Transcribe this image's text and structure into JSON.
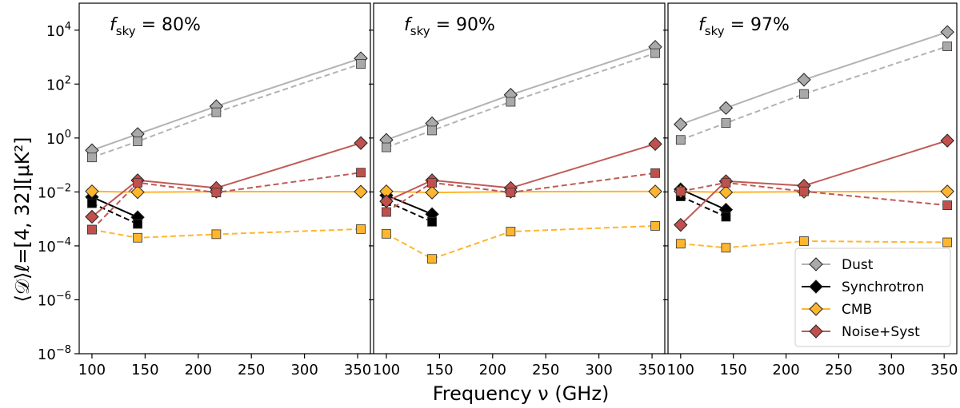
{
  "chart_data": {
    "type": "line",
    "xlabel": "Frequency ν (GHz)",
    "ylabel": "⟨𝒟⟩ℓ=[4, 32][μK²]",
    "x_ticks": [
      100,
      150,
      200,
      250,
      300,
      350
    ],
    "xlim": [
      88,
      362
    ],
    "yscale": "log",
    "ylim": [
      1e-08,
      100000.0
    ],
    "y_ticks": [
      {
        "exp": 4,
        "label": "10",
        "sup": "4"
      },
      {
        "exp": 2,
        "label": "10",
        "sup": "2"
      },
      {
        "exp": 0,
        "label": "10",
        "sup": "0"
      },
      {
        "exp": -2,
        "label": "10",
        "sup": "−2"
      },
      {
        "exp": -4,
        "label": "10",
        "sup": "−4"
      },
      {
        "exp": -6,
        "label": "10",
        "sup": "−6"
      },
      {
        "exp": -8,
        "label": "10",
        "sup": "−8"
      }
    ],
    "series_styles": {
      "dust": {
        "color": "#a9a9a9",
        "line": "#b3b3b3"
      },
      "synchrotron": {
        "color": "#000000",
        "line": "#000000"
      },
      "cmb": {
        "color": "#ffb52e",
        "line": "#ffb52e"
      },
      "noise": {
        "color": "#c0504d",
        "line": "#c05a55"
      }
    },
    "legend": {
      "placement": "lower right of third panel",
      "entries": [
        {
          "key": "dust",
          "label": "Dust"
        },
        {
          "key": "synchrotron",
          "label": "Synchrotron"
        },
        {
          "key": "cmb",
          "label": "CMB"
        },
        {
          "key": "noise",
          "label": "Noise+Syst"
        }
      ]
    },
    "panels": [
      {
        "title_prefix": "f",
        "title_sub": "sky",
        "title_value": " = 80%",
        "series": [
          {
            "key": "dust",
            "marker": "diamond",
            "dash": false,
            "x": [
              100,
              143,
              217,
              353
            ],
            "y": [
              0.35,
              1.4,
              15,
              900
            ]
          },
          {
            "key": "dust",
            "marker": "square",
            "dash": true,
            "x": [
              100,
              143,
              217,
              353
            ],
            "y": [
              0.19,
              0.75,
              9,
              560
            ]
          },
          {
            "key": "synchrotron",
            "marker": "diamond",
            "dash": false,
            "x": [
              100,
              143
            ],
            "y": [
              0.0065,
              0.00115
            ]
          },
          {
            "key": "synchrotron",
            "marker": "square",
            "dash": true,
            "x": [
              100,
              143
            ],
            "y": [
              0.0038,
              0.00065
            ]
          },
          {
            "key": "cmb",
            "marker": "diamond",
            "dash": false,
            "x": [
              100,
              143,
              217,
              353
            ],
            "y": [
              0.0105,
              0.0098,
              0.0103,
              0.0102
            ]
          },
          {
            "key": "cmb",
            "marker": "square",
            "dash": true,
            "x": [
              100,
              143,
              217,
              353
            ],
            "y": [
              0.0004,
              0.0002,
              0.00027,
              0.00042
            ]
          },
          {
            "key": "noise",
            "marker": "diamond",
            "dash": false,
            "x": [
              100,
              143,
              217,
              353
            ],
            "y": [
              0.0012,
              0.027,
              0.014,
              0.65
            ]
          },
          {
            "key": "noise",
            "marker": "square",
            "dash": true,
            "x": [
              100,
              143,
              217,
              353
            ],
            "y": [
              0.0004,
              0.022,
              0.0095,
              0.052
            ]
          }
        ]
      },
      {
        "title_prefix": "f",
        "title_sub": "sky",
        "title_value": " = 90%",
        "series": [
          {
            "key": "dust",
            "marker": "diamond",
            "dash": false,
            "x": [
              100,
              143,
              217,
              353
            ],
            "y": [
              0.85,
              3.5,
              40,
              2400
            ]
          },
          {
            "key": "dust",
            "marker": "square",
            "dash": true,
            "x": [
              100,
              143,
              217,
              353
            ],
            "y": [
              0.45,
              1.9,
              22,
              1400
            ]
          },
          {
            "key": "synchrotron",
            "marker": "diamond",
            "dash": false,
            "x": [
              100,
              143
            ],
            "y": [
              0.0075,
              0.0015
            ]
          },
          {
            "key": "synchrotron",
            "marker": "square",
            "dash": true,
            "x": [
              100,
              143
            ],
            "y": [
              0.0045,
              0.00078
            ]
          },
          {
            "key": "cmb",
            "marker": "diamond",
            "dash": false,
            "x": [
              100,
              143,
              217,
              353
            ],
            "y": [
              0.0105,
              0.0095,
              0.0102,
              0.0104
            ]
          },
          {
            "key": "cmb",
            "marker": "square",
            "dash": true,
            "x": [
              100,
              143,
              217,
              353
            ],
            "y": [
              0.00028,
              3.3e-05,
              0.00034,
              0.00055
            ]
          },
          {
            "key": "noise",
            "marker": "diamond",
            "dash": false,
            "x": [
              100,
              143,
              217,
              353
            ],
            "y": [
              0.0045,
              0.027,
              0.014,
              0.6
            ]
          },
          {
            "key": "noise",
            "marker": "square",
            "dash": true,
            "x": [
              100,
              143,
              217,
              353
            ],
            "y": [
              0.0018,
              0.022,
              0.0095,
              0.05
            ]
          }
        ]
      },
      {
        "title_prefix": "f",
        "title_sub": "sky",
        "title_value": " = 97%",
        "series": [
          {
            "key": "dust",
            "marker": "diamond",
            "dash": false,
            "x": [
              100,
              143,
              217,
              353
            ],
            "y": [
              3.2,
              13,
              145,
              8500
            ]
          },
          {
            "key": "dust",
            "marker": "square",
            "dash": true,
            "x": [
              100,
              143,
              217,
              353
            ],
            "y": [
              0.85,
              3.6,
              43,
              2500
            ]
          },
          {
            "key": "synchrotron",
            "marker": "diamond",
            "dash": false,
            "x": [
              100,
              143
            ],
            "y": [
              0.0125,
              0.0022
            ]
          },
          {
            "key": "synchrotron",
            "marker": "square",
            "dash": true,
            "x": [
              100,
              143
            ],
            "y": [
              0.0068,
              0.0012
            ]
          },
          {
            "key": "cmb",
            "marker": "diamond",
            "dash": false,
            "x": [
              100,
              143,
              217,
              353
            ],
            "y": [
              0.0105,
              0.0097,
              0.0102,
              0.0104
            ]
          },
          {
            "key": "cmb",
            "marker": "square",
            "dash": true,
            "x": [
              100,
              143,
              217,
              353
            ],
            "y": [
              0.00012,
              8.5e-05,
              0.00015,
              0.000135
            ]
          },
          {
            "key": "noise",
            "marker": "diamond",
            "dash": false,
            "x": [
              100,
              143,
              217,
              353
            ],
            "y": [
              0.0006,
              0.025,
              0.017,
              0.8
            ]
          },
          {
            "key": "noise",
            "marker": "square",
            "dash": true,
            "x": [
              100,
              143,
              217,
              353
            ],
            "y": [
              0.0105,
              0.022,
              0.0105,
              0.0032
            ]
          }
        ]
      }
    ]
  }
}
